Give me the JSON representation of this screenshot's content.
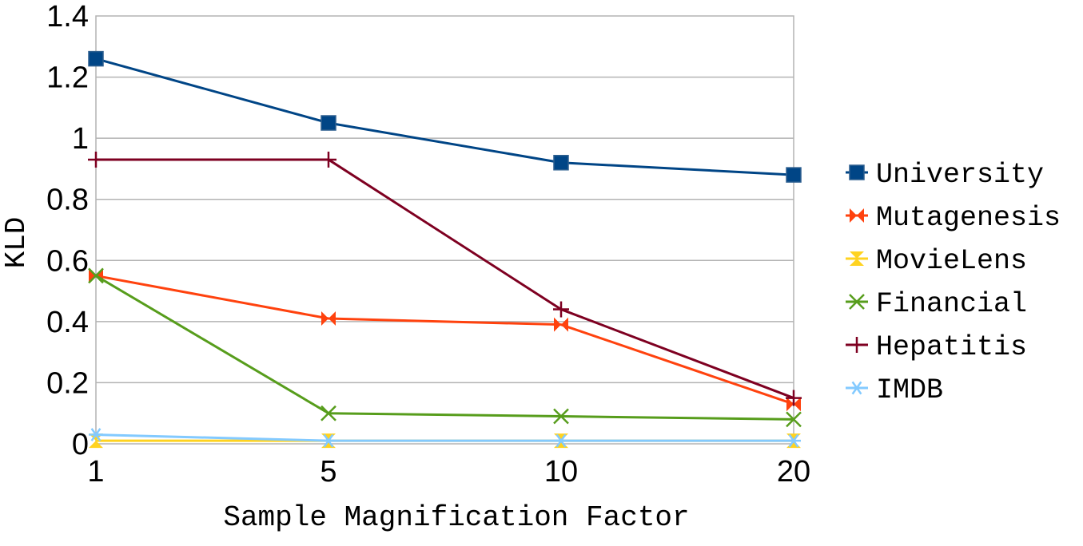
{
  "chart_data": {
    "type": "line",
    "title": "",
    "xlabel": "Sample Magnification Factor",
    "ylabel": "KLD",
    "x": [
      "1",
      "5",
      "10",
      "20"
    ],
    "ylim": [
      0,
      1.4
    ],
    "yticks": [
      "0",
      "0.2",
      "0.4",
      "0.6",
      "0.8",
      "1",
      "1.2",
      "1.4"
    ],
    "grid": "horizontal",
    "legend_position": "right",
    "series": [
      {
        "name": "University",
        "values": [
          1.26,
          1.05,
          0.92,
          0.88
        ],
        "color": "#004586",
        "marker": "square"
      },
      {
        "name": "Mutagenesis",
        "values": [
          0.55,
          0.41,
          0.39,
          0.13
        ],
        "color": "#ff420e",
        "marker": "bowtie"
      },
      {
        "name": "MovieLens",
        "values": [
          0.01,
          0.01,
          0.01,
          0.01
        ],
        "color": "#ffd320",
        "marker": "hourglass"
      },
      {
        "name": "Financial",
        "values": [
          0.55,
          0.1,
          0.09,
          0.08
        ],
        "color": "#579d1c",
        "marker": "x"
      },
      {
        "name": "Hepatitis",
        "values": [
          0.93,
          0.93,
          0.44,
          0.15
        ],
        "color": "#7e0021",
        "marker": "plus"
      },
      {
        "name": "IMDB",
        "values": [
          0.03,
          0.01,
          0.01,
          0.01
        ],
        "color": "#83caff",
        "marker": "asterisk"
      }
    ]
  }
}
